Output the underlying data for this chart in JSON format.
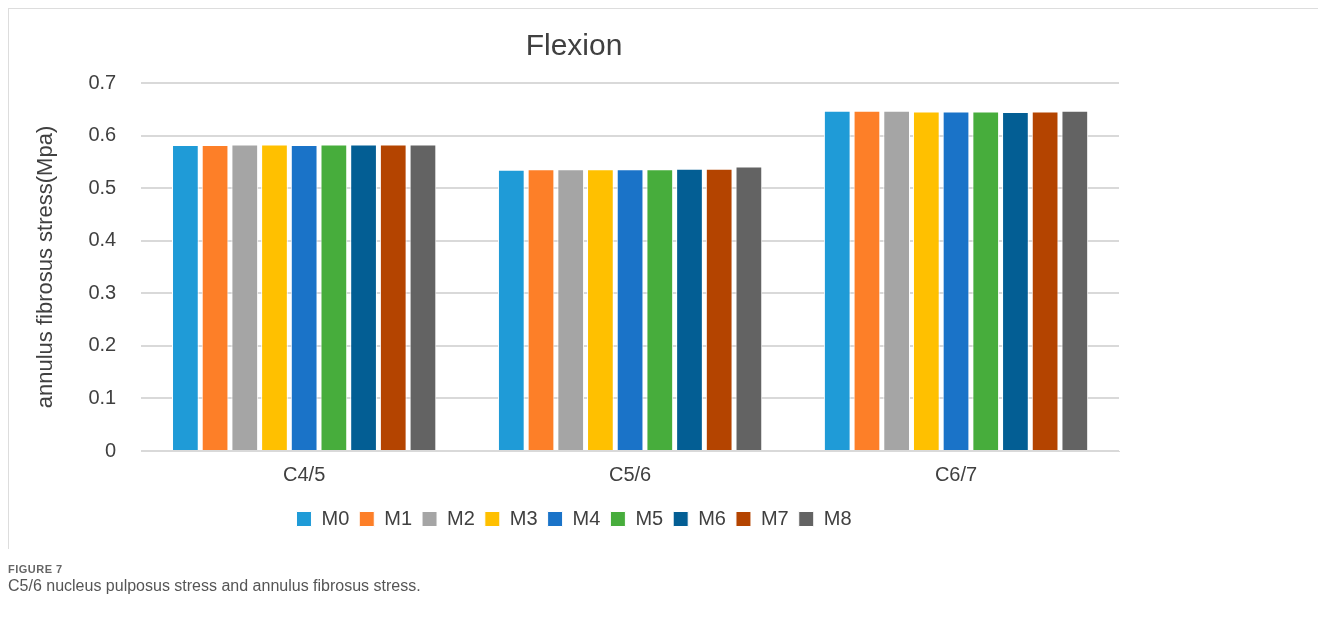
{
  "chart_data": {
    "type": "bar",
    "title": "Flexion",
    "ylabel": "annulus fibrosus stress(Mpa)",
    "categories": [
      "C4/5",
      "C5/6",
      "C6/7"
    ],
    "series": [
      {
        "name": "M0",
        "color": "#1f9bd7",
        "values": [
          0.582,
          0.535,
          0.647
        ]
      },
      {
        "name": "M1",
        "color": "#fd7f28",
        "values": [
          0.582,
          0.536,
          0.647
        ]
      },
      {
        "name": "M2",
        "color": "#a5a5a5",
        "values": [
          0.583,
          0.536,
          0.647
        ]
      },
      {
        "name": "M3",
        "color": "#ffc000",
        "values": [
          0.583,
          0.536,
          0.646
        ]
      },
      {
        "name": "M4",
        "color": "#1a73c8",
        "values": [
          0.582,
          0.536,
          0.646
        ]
      },
      {
        "name": "M5",
        "color": "#47ad3c",
        "values": [
          0.583,
          0.536,
          0.646
        ]
      },
      {
        "name": "M6",
        "color": "#035e94",
        "values": [
          0.583,
          0.537,
          0.645
        ]
      },
      {
        "name": "M7",
        "color": "#b44400",
        "values": [
          0.583,
          0.537,
          0.646
        ]
      },
      {
        "name": "M8",
        "color": "#636363",
        "values": [
          0.583,
          0.541,
          0.647
        ]
      }
    ],
    "ylim": [
      0,
      0.7
    ],
    "yticks": [
      0,
      0.1,
      0.2,
      0.3,
      0.4,
      0.5,
      0.6,
      0.7
    ],
    "grid": "y",
    "legend": "bottom",
    "annotations": [
      "FIGURE 7",
      "C5/6 nucleus pulposus stress and annulus fibrosus stress."
    ]
  }
}
